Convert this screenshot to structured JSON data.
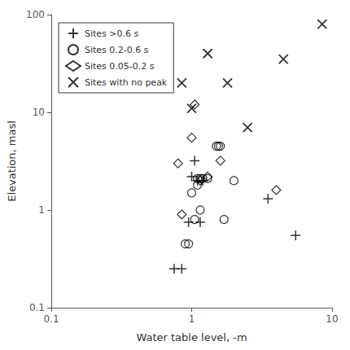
{
  "chart_data": {
    "type": "scatter",
    "xlabel": "Water table level, -m",
    "ylabel": "Elevation, masl",
    "log": true,
    "xlim": [
      0.1,
      10
    ],
    "ylim": [
      0.1,
      100
    ],
    "xticks": [
      0.1,
      1,
      10
    ],
    "yticks": [
      0.1,
      1,
      10,
      100
    ],
    "grid": false,
    "legend": "upper left",
    "color": "black",
    "series": [
      {
        "name": "Sites >0.6 s",
        "marker": "plus",
        "x": [
          0.75,
          0.85,
          0.95,
          1.15,
          1.0,
          1.05,
          1.1,
          1.2,
          3.5,
          5.5
        ],
        "y": [
          0.25,
          0.25,
          0.75,
          0.75,
          2.2,
          3.2,
          2.0,
          2.0,
          1.3,
          0.55
        ]
      },
      {
        "name": "Sites 0.2-0.6 s",
        "marker": "circle",
        "x": [
          0.9,
          0.95,
          1.0,
          1.05,
          1.1,
          1.1,
          1.15,
          1.2,
          1.3,
          1.5,
          1.55,
          1.6,
          1.7,
          2.0,
          1.15
        ],
        "y": [
          0.45,
          0.45,
          1.5,
          0.8,
          1.8,
          2.1,
          2.1,
          2.1,
          2.1,
          4.5,
          4.5,
          4.5,
          0.8,
          2.0,
          1.0
        ]
      },
      {
        "name": "Sites 0.05-0.2 s",
        "marker": "diamond",
        "x": [
          0.85,
          0.8,
          1.0,
          1.05,
          1.3,
          1.6,
          4.0,
          1.15
        ],
        "y": [
          0.9,
          3.0,
          5.5,
          12.0,
          2.2,
          3.2,
          1.6,
          2.0
        ]
      },
      {
        "name": "Sites with no peak",
        "marker": "x",
        "x": [
          0.85,
          1.3,
          1.8,
          2.5,
          4.5,
          1.0,
          8.5
        ],
        "y": [
          20.0,
          40.0,
          20.0,
          7.0,
          35.0,
          11.0,
          80.0
        ]
      }
    ]
  }
}
